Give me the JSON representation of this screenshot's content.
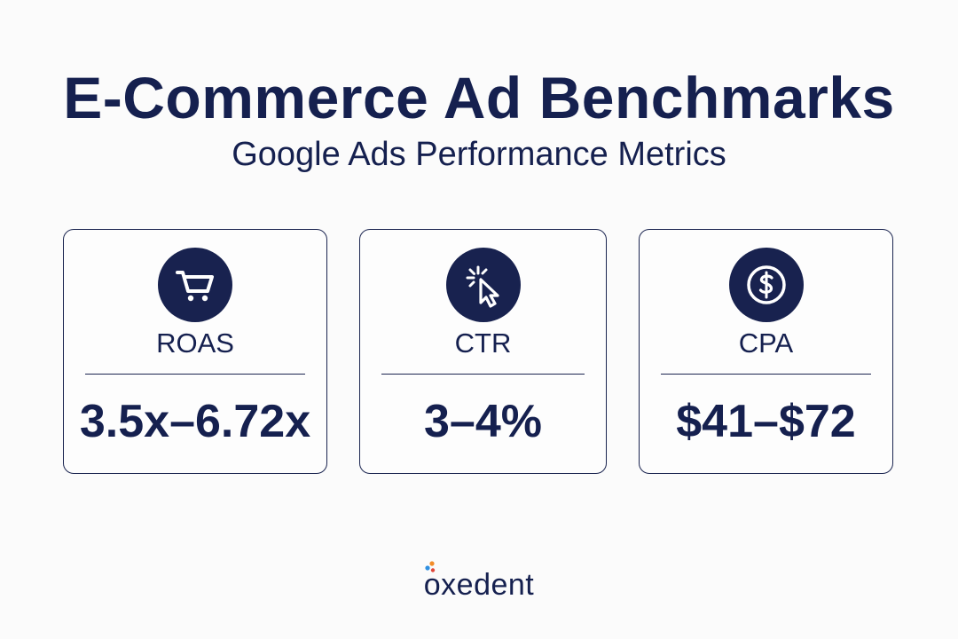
{
  "header": {
    "title": "E-Commerce Ad Benchmarks",
    "subtitle": "Google Ads Performance Metrics"
  },
  "cards": [
    {
      "icon": "shopping-cart-icon",
      "label": "ROAS",
      "value": "3.5x–6.72x"
    },
    {
      "icon": "cursor-click-icon",
      "label": "CTR",
      "value": "3–4%"
    },
    {
      "icon": "dollar-coin-icon",
      "label": "CPA",
      "value": "$41–$72"
    }
  ],
  "footer": {
    "brand": "oxedent"
  },
  "colors": {
    "navy": "#15204f",
    "background": "#fbfbfb",
    "logo_dot_orange": "#f28c28",
    "logo_dot_blue": "#2f8fe0",
    "logo_dot_red": "#e0473a"
  }
}
